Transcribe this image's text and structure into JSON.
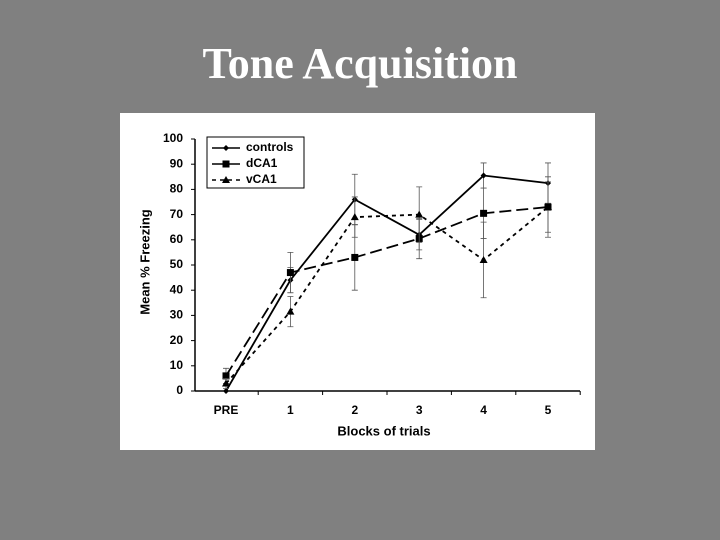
{
  "chart_data": {
    "type": "line",
    "title": "Tone Acquisition",
    "x_label": "Blocks of trials",
    "y_label": "Mean % Freezing",
    "categories": [
      "PRE",
      "1",
      "2",
      "3",
      "4",
      "5"
    ],
    "series": [
      {
        "name": "controls",
        "color": "#000000",
        "dash": "solid",
        "marker": "diamond",
        "values": [
          0,
          44,
          76,
          62,
          85.5,
          82.5
        ],
        "errors": [
          0,
          5,
          10,
          6,
          5,
          8
        ]
      },
      {
        "name": "dCA1",
        "color": "#000000",
        "dash": "long",
        "marker": "square",
        "values": [
          6,
          47,
          53,
          60.5,
          70.5,
          73
        ],
        "errors": [
          3,
          8,
          13,
          8,
          10,
          12
        ]
      },
      {
        "name": "vCA1",
        "color": "#000000",
        "dash": "short",
        "marker": "triangle",
        "values": [
          3,
          31.5,
          69,
          70,
          52,
          73
        ],
        "errors": [
          2,
          6,
          8,
          11,
          15,
          10
        ]
      }
    ],
    "ylim": [
      0,
      100
    ],
    "yticks": [
      0,
      10,
      20,
      30,
      40,
      50,
      60,
      70,
      80,
      90,
      100
    ],
    "grid": false,
    "legend": "top-left"
  }
}
